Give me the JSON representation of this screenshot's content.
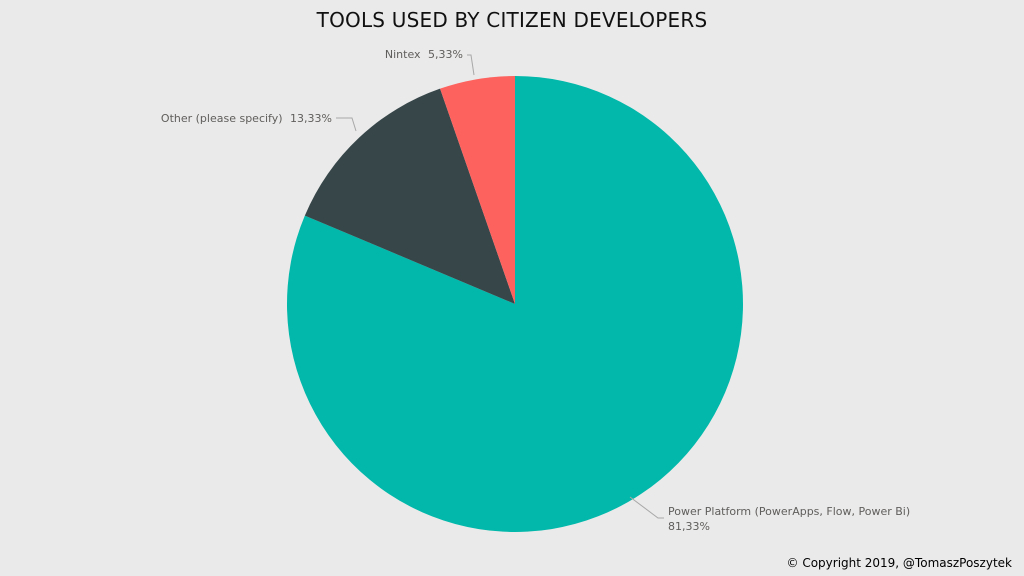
{
  "chart_data": {
    "type": "pie",
    "title": "TOOLS USED BY CITIZEN DEVELOPERS",
    "slices": [
      {
        "label": "Power Platform (PowerApps, Flow, Power Bi)",
        "value": 81.33,
        "value_text": "81,33%",
        "color": "#01b8aa"
      },
      {
        "label": "Other (please specify)",
        "value": 13.33,
        "value_text": "13,33%",
        "color": "#374649"
      },
      {
        "label": "Nintex",
        "value": 5.33,
        "value_text": "5,33%",
        "color": "#fd625e"
      }
    ],
    "start": "top",
    "direction": "clockwise",
    "legend": "none"
  },
  "footer": {
    "copyright": "© Copyright 2019, @TomaszPoszytek"
  }
}
